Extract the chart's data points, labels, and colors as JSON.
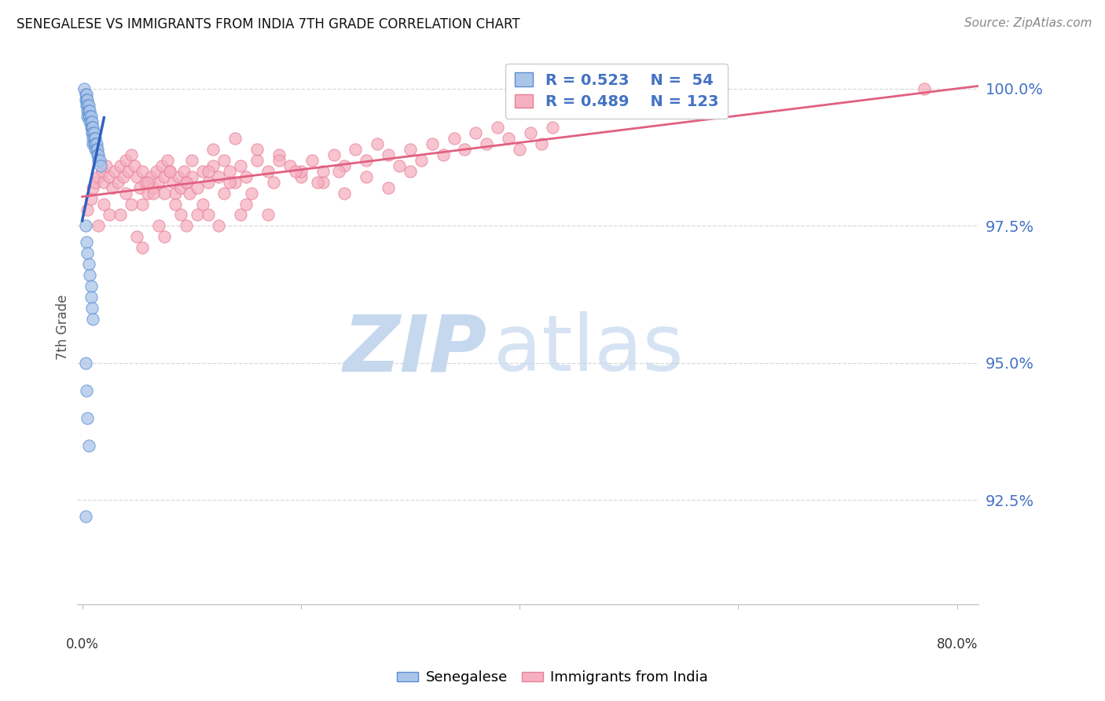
{
  "title": "SENEGALESE VS IMMIGRANTS FROM INDIA 7TH GRADE CORRELATION CHART",
  "source": "Source: ZipAtlas.com",
  "ylabel": "7th Grade",
  "ytick_labels": [
    "100.0%",
    "97.5%",
    "95.0%",
    "92.5%"
  ],
  "ytick_values": [
    1.0,
    0.975,
    0.95,
    0.925
  ],
  "xlim": [
    -0.005,
    0.82
  ],
  "ylim": [
    0.906,
    1.007
  ],
  "legend_r1": "R = 0.523",
  "legend_n1": "N =  54",
  "legend_r2": "R = 0.489",
  "legend_n2": "N = 123",
  "color_senegalese_fill": "#aac5e8",
  "color_senegalese_edge": "#5b8dd4",
  "color_india_fill": "#f5b0c0",
  "color_india_edge": "#e8809a",
  "color_line_senegalese": "#3060c0",
  "color_line_india": "#e06080",
  "color_legend_text": "#4472c4",
  "color_right_axis": "#4472c4",
  "watermark_zip_color": "#c5d8ee",
  "watermark_atlas_color": "#c5d8ee",
  "background_color": "#ffffff",
  "grid_color": "#d8d8d8",
  "sen_x": [
    0.002,
    0.003,
    0.003,
    0.004,
    0.004,
    0.004,
    0.005,
    0.005,
    0.005,
    0.005,
    0.006,
    0.006,
    0.006,
    0.007,
    0.007,
    0.007,
    0.008,
    0.008,
    0.008,
    0.009,
    0.009,
    0.009,
    0.01,
    0.01,
    0.01,
    0.01,
    0.011,
    0.011,
    0.011,
    0.012,
    0.012,
    0.012,
    0.013,
    0.013,
    0.014,
    0.014,
    0.015,
    0.015,
    0.016,
    0.017,
    0.003,
    0.004,
    0.005,
    0.006,
    0.007,
    0.008,
    0.008,
    0.009,
    0.01,
    0.003,
    0.004,
    0.005,
    0.006,
    0.003
  ],
  "sen_y": [
    1.0,
    0.999,
    0.998,
    0.999,
    0.998,
    0.997,
    0.998,
    0.997,
    0.996,
    0.995,
    0.997,
    0.996,
    0.995,
    0.996,
    0.995,
    0.994,
    0.995,
    0.994,
    0.993,
    0.994,
    0.993,
    0.992,
    0.993,
    0.992,
    0.991,
    0.99,
    0.992,
    0.991,
    0.99,
    0.991,
    0.99,
    0.989,
    0.99,
    0.989,
    0.989,
    0.988,
    0.988,
    0.987,
    0.987,
    0.986,
    0.975,
    0.972,
    0.97,
    0.968,
    0.966,
    0.964,
    0.962,
    0.96,
    0.958,
    0.95,
    0.945,
    0.94,
    0.935,
    0.922
  ],
  "ind_x": [
    0.005,
    0.008,
    0.01,
    0.012,
    0.015,
    0.018,
    0.02,
    0.022,
    0.025,
    0.028,
    0.03,
    0.033,
    0.035,
    0.038,
    0.04,
    0.042,
    0.045,
    0.048,
    0.05,
    0.053,
    0.055,
    0.058,
    0.06,
    0.063,
    0.065,
    0.068,
    0.07,
    0.073,
    0.075,
    0.078,
    0.08,
    0.083,
    0.085,
    0.088,
    0.09,
    0.093,
    0.095,
    0.098,
    0.1,
    0.105,
    0.11,
    0.115,
    0.12,
    0.125,
    0.13,
    0.135,
    0.14,
    0.145,
    0.15,
    0.16,
    0.17,
    0.18,
    0.19,
    0.2,
    0.21,
    0.22,
    0.23,
    0.24,
    0.25,
    0.26,
    0.27,
    0.28,
    0.29,
    0.3,
    0.31,
    0.32,
    0.33,
    0.34,
    0.35,
    0.36,
    0.37,
    0.38,
    0.39,
    0.4,
    0.41,
    0.42,
    0.43,
    0.02,
    0.04,
    0.06,
    0.08,
    0.1,
    0.12,
    0.14,
    0.16,
    0.18,
    0.2,
    0.22,
    0.24,
    0.26,
    0.28,
    0.3,
    0.035,
    0.055,
    0.075,
    0.095,
    0.115,
    0.135,
    0.155,
    0.175,
    0.195,
    0.215,
    0.235,
    0.015,
    0.025,
    0.045,
    0.065,
    0.085,
    0.105,
    0.125,
    0.145,
    0.05,
    0.07,
    0.09,
    0.11,
    0.13,
    0.15,
    0.17,
    0.055,
    0.075,
    0.095,
    0.115,
    0.77
  ],
  "ind_y": [
    0.978,
    0.98,
    0.982,
    0.983,
    0.984,
    0.985,
    0.983,
    0.986,
    0.984,
    0.982,
    0.985,
    0.983,
    0.986,
    0.984,
    0.987,
    0.985,
    0.988,
    0.986,
    0.984,
    0.982,
    0.985,
    0.983,
    0.981,
    0.984,
    0.982,
    0.985,
    0.983,
    0.986,
    0.984,
    0.987,
    0.985,
    0.983,
    0.981,
    0.984,
    0.982,
    0.985,
    0.983,
    0.981,
    0.984,
    0.982,
    0.985,
    0.983,
    0.986,
    0.984,
    0.987,
    0.985,
    0.983,
    0.986,
    0.984,
    0.987,
    0.985,
    0.988,
    0.986,
    0.984,
    0.987,
    0.985,
    0.988,
    0.986,
    0.989,
    0.987,
    0.99,
    0.988,
    0.986,
    0.989,
    0.987,
    0.99,
    0.988,
    0.991,
    0.989,
    0.992,
    0.99,
    0.993,
    0.991,
    0.989,
    0.992,
    0.99,
    0.993,
    0.979,
    0.981,
    0.983,
    0.985,
    0.987,
    0.989,
    0.991,
    0.989,
    0.987,
    0.985,
    0.983,
    0.981,
    0.984,
    0.982,
    0.985,
    0.977,
    0.979,
    0.981,
    0.983,
    0.985,
    0.983,
    0.981,
    0.983,
    0.985,
    0.983,
    0.985,
    0.975,
    0.977,
    0.979,
    0.981,
    0.979,
    0.977,
    0.975,
    0.977,
    0.973,
    0.975,
    0.977,
    0.979,
    0.981,
    0.979,
    0.977,
    0.971,
    0.973,
    0.975,
    0.977,
    1.0
  ],
  "sen_line_x": [
    0.0,
    0.018
  ],
  "sen_line_y": [
    0.974,
    1.003
  ],
  "ind_line_x": [
    0.0,
    0.82
  ],
  "ind_line_y": [
    0.973,
    1.001
  ]
}
